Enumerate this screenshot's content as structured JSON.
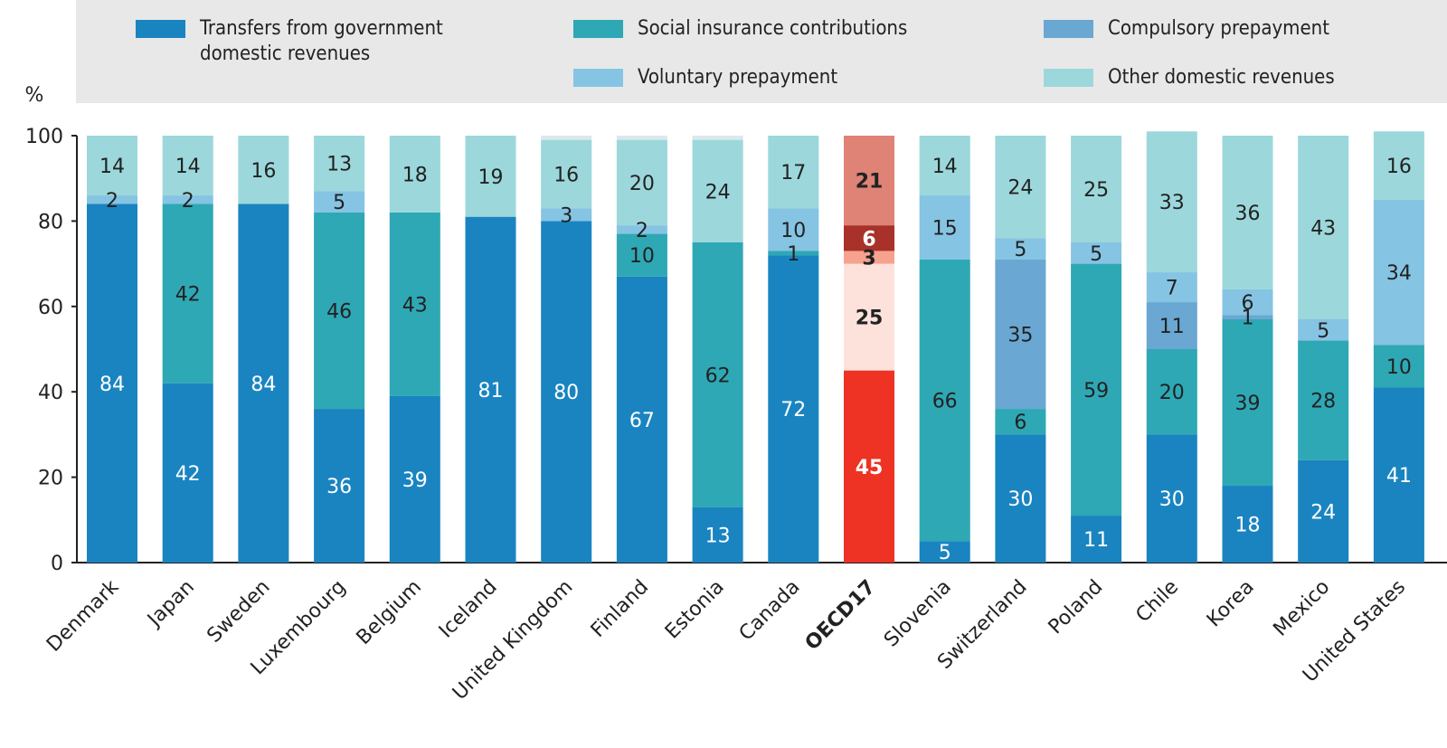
{
  "chart_data": {
    "type": "bar",
    "stacked": true,
    "ylabel": "%",
    "ylim": [
      0,
      100
    ],
    "yticks": [
      0,
      20,
      40,
      60,
      80,
      100
    ],
    "categories": [
      "Denmark",
      "Japan",
      "Sweden",
      "Luxembourg",
      "Belgium",
      "Iceland",
      "United Kingdom",
      "Finland",
      "Estonia",
      "Canada",
      "OECD17",
      "Slovenia",
      "Switzerland",
      "Poland",
      "Chile",
      "Korea",
      "Mexico",
      "United States"
    ],
    "highlight_category": "OECD17",
    "series": [
      {
        "name": "Transfers from government\ndomestic revenues",
        "color": "#1a84c1",
        "values": [
          84,
          42,
          84,
          36,
          39,
          81,
          80,
          67,
          13,
          72,
          45,
          5,
          30,
          11,
          30,
          18,
          24,
          41
        ]
      },
      {
        "name": "Social insurance contributions",
        "color": "#2ea8b5",
        "values": [
          0,
          42,
          0,
          46,
          43,
          0,
          0,
          10,
          62,
          1,
          25,
          66,
          6,
          59,
          20,
          39,
          28,
          10
        ]
      },
      {
        "name": "Compulsory prepayment",
        "color": "#6aa7d2",
        "values": [
          0,
          0,
          0,
          0,
          0,
          0,
          0,
          0,
          0,
          0,
          3,
          0,
          35,
          0,
          11,
          1,
          0,
          0
        ]
      },
      {
        "name": "Voluntary prepayment",
        "color": "#86c4e3",
        "values": [
          2,
          2,
          0,
          5,
          0,
          0,
          3,
          2,
          0,
          10,
          6,
          15,
          5,
          5,
          7,
          6,
          5,
          34
        ]
      },
      {
        "name": "Other domestic revenues",
        "color": "#9cd8db",
        "values": [
          14,
          14,
          16,
          13,
          18,
          19,
          16,
          20,
          24,
          17,
          21,
          14,
          24,
          25,
          33,
          36,
          43,
          16
        ]
      }
    ],
    "highlight_colors": [
      "#ee3224",
      "#fde2dc",
      "#f6a28f",
      "#a8312a",
      "#de8376"
    ],
    "legend_placement": "top"
  }
}
